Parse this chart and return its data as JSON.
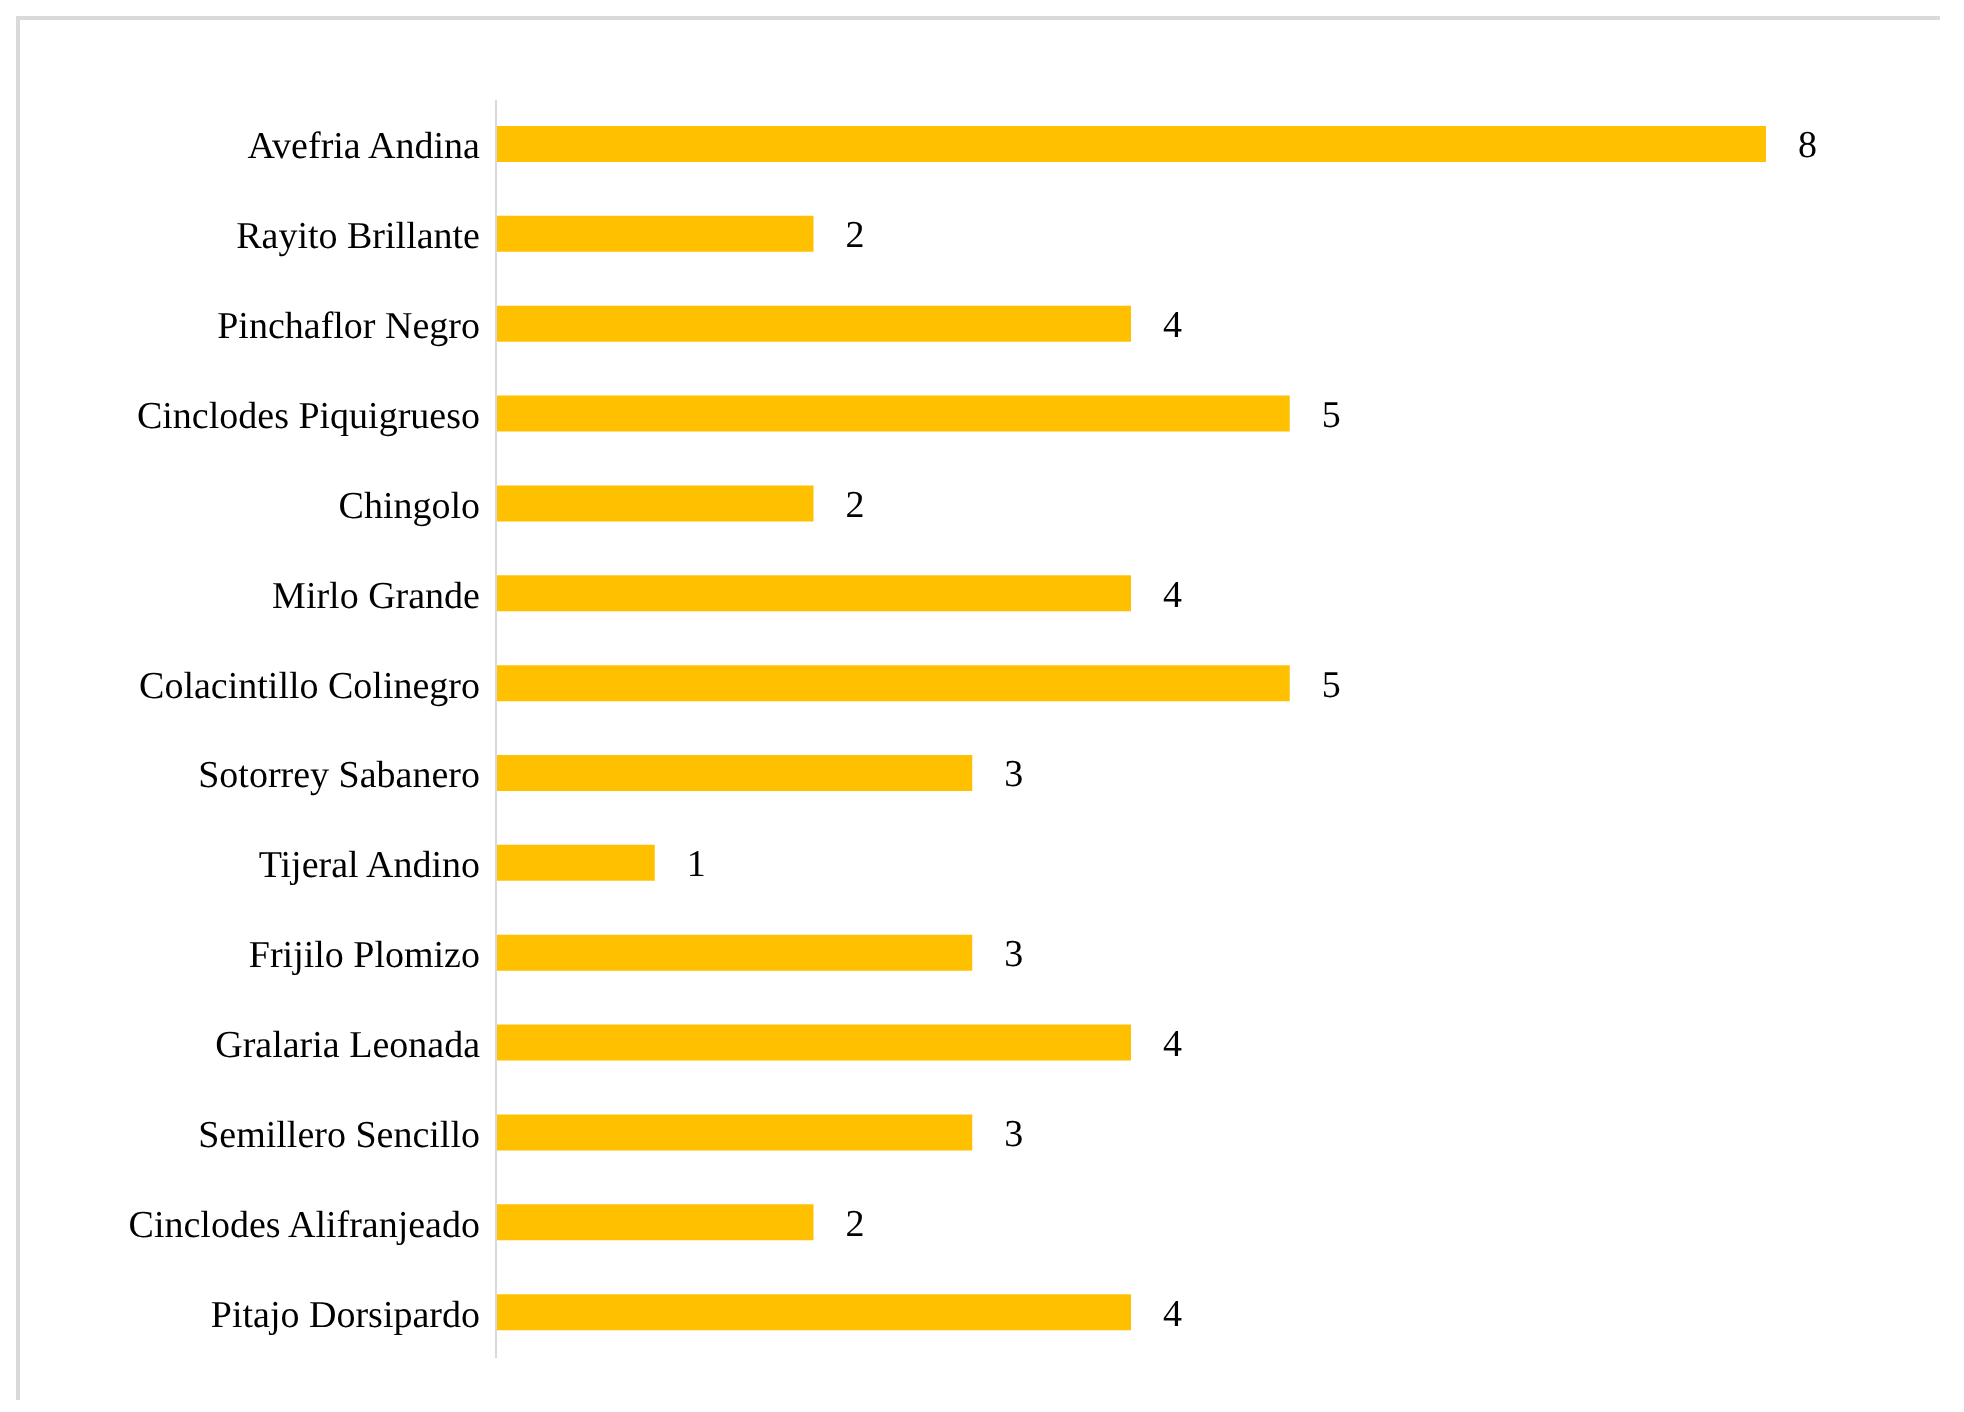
{
  "chart_data": {
    "type": "bar",
    "orientation": "horizontal",
    "categories": [
      "Avefria Andina",
      "Rayito Brillante",
      "Pinchaflor Negro",
      "Cinclodes Piquigrueso",
      "Chingolo",
      "Mirlo Grande",
      "Colacintillo Colinegro",
      "Sotorrey Sabanero",
      "Tijeral Andino",
      "Frijilo Plomizo",
      "Gralaria Leonada",
      "Semillero Sencillo",
      "Cinclodes Alifranjeado",
      "Pitajo Dorsipardo"
    ],
    "values": [
      8,
      2,
      4,
      5,
      2,
      4,
      5,
      3,
      1,
      3,
      4,
      3,
      2,
      4
    ],
    "color": "#ffc000",
    "data_labels": true,
    "tick_labels": "y"
  }
}
